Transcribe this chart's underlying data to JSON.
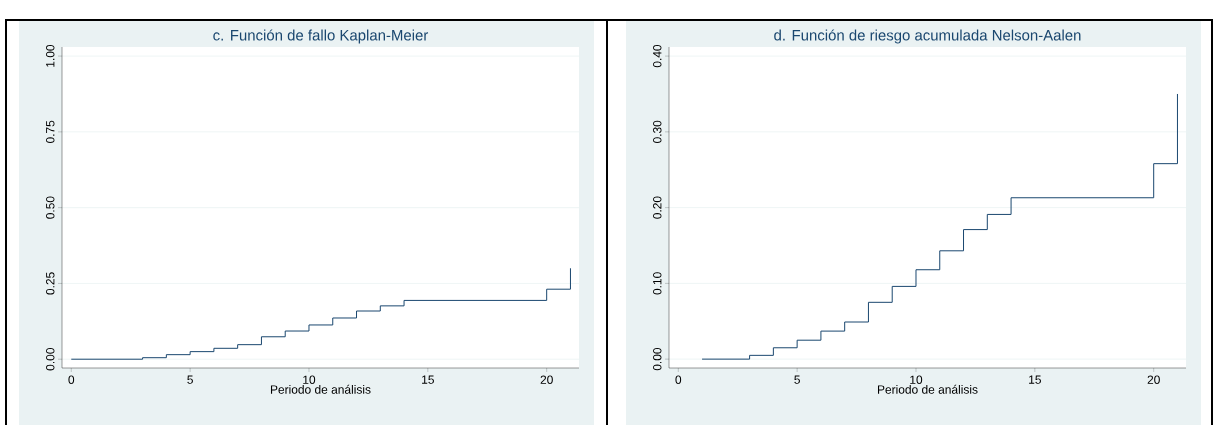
{
  "chart_data": [
    {
      "type": "step",
      "title": "c. Función de fallo Kaplan-Meier",
      "xlabel": "Periodo de análisis",
      "color": "#1a476f",
      "x": [
        0,
        1,
        2,
        3,
        4,
        5,
        6,
        7,
        8,
        9,
        10,
        11,
        12,
        13,
        14,
        15,
        16,
        17,
        18,
        19,
        20,
        21
      ],
      "values": [
        0,
        0,
        0,
        0.005,
        0.015,
        0.025,
        0.036,
        0.048,
        0.074,
        0.093,
        0.113,
        0.136,
        0.159,
        0.176,
        0.194,
        0.194,
        0.194,
        0.194,
        0.194,
        0.194,
        0.231,
        0.3
      ],
      "xlim": [
        -0.39,
        21.36
      ],
      "ylim": [
        -0.029,
        1.03
      ],
      "xticks": [
        0,
        5,
        10,
        15,
        20
      ],
      "yticks": [
        {
          "value": 0,
          "label": "0.00"
        },
        {
          "value": 0.25,
          "label": "0.25"
        },
        {
          "value": 0.5,
          "label": "0.50"
        },
        {
          "value": 0.75,
          "label": "0.75"
        },
        {
          "value": 1,
          "label": "1.00"
        }
      ],
      "grid": "y"
    },
    {
      "type": "step",
      "title": "d. Función de riesgo acumulada Nelson-Aalen",
      "xlabel": "Periodo de análisis",
      "color": "#1a476f",
      "x": [
        1,
        2,
        3,
        4,
        5,
        6,
        7,
        8,
        9,
        10,
        11,
        12,
        13,
        14,
        15,
        16,
        17,
        18,
        19,
        20,
        21
      ],
      "values": [
        0,
        0,
        0.005,
        0.015,
        0.025,
        0.037,
        0.049,
        0.075,
        0.096,
        0.118,
        0.143,
        0.171,
        0.191,
        0.213,
        0.213,
        0.213,
        0.213,
        0.213,
        0.213,
        0.258,
        0.35
      ],
      "xlim": [
        -0.39,
        21.36
      ],
      "ylim": [
        -0.0117,
        0.412
      ],
      "xticks": [
        0,
        5,
        10,
        15,
        20
      ],
      "yticks": [
        {
          "value": 0,
          "label": "0.00"
        },
        {
          "value": 0.1,
          "label": "0.10"
        },
        {
          "value": 0.2,
          "label": "0.20"
        },
        {
          "value": 0.3,
          "label": "0.30"
        },
        {
          "value": 0.4,
          "label": "0.40"
        }
      ],
      "grid": "y"
    }
  ]
}
